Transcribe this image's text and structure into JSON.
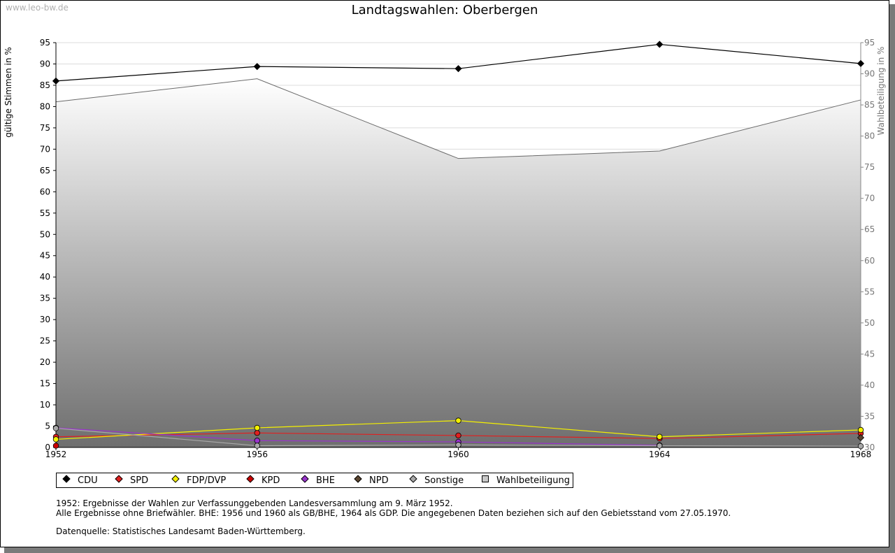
{
  "header": {
    "watermark": "www.leo-bw.de",
    "title": "Landtagswahlen: Oberbergen"
  },
  "chart_data": {
    "type": "line",
    "title": "Landtagswahlen: Oberbergen",
    "x": [
      "1952",
      "1956",
      "1960",
      "1964",
      "1968"
    ],
    "ylabel": "gültige Stimmen in %",
    "y2label": "Wahlbeteiligung in %",
    "ylim": [
      0,
      95
    ],
    "y2lim": [
      30,
      95
    ],
    "yticks": [
      0,
      5,
      10,
      15,
      20,
      25,
      30,
      35,
      40,
      45,
      50,
      55,
      60,
      65,
      70,
      75,
      80,
      85,
      90,
      95
    ],
    "y2ticks": [
      30,
      35,
      40,
      45,
      50,
      55,
      60,
      65,
      70,
      75,
      80,
      85,
      90,
      95
    ],
    "grid": true,
    "legend_position": "bottom",
    "series": [
      {
        "name": "CDU",
        "color": "#000000",
        "values": [
          86.0,
          89.4,
          88.9,
          94.6,
          90.1
        ]
      },
      {
        "name": "SPD",
        "color": "#e02020",
        "values": [
          2.5,
          3.4,
          2.8,
          2.1,
          3.3
        ]
      },
      {
        "name": "FDP/DVP",
        "color": "#f4f000",
        "values": [
          1.9,
          4.6,
          6.3,
          2.5,
          4.1
        ]
      },
      {
        "name": "KPD",
        "color": "#cc0000",
        "values": [
          0.4,
          null,
          null,
          null,
          null
        ]
      },
      {
        "name": "BHE",
        "color": "#9933cc",
        "values": [
          4.6,
          1.6,
          1.3,
          0.5,
          null
        ]
      },
      {
        "name": "NPD",
        "color": "#5a4530",
        "values": [
          null,
          null,
          null,
          null,
          2.3
        ]
      },
      {
        "name": "Sonstige",
        "color": "#a8a8a8",
        "values": [
          4.5,
          0.4,
          0.6,
          0.4,
          0.3
        ]
      }
    ],
    "turnout": {
      "name": "Wahlbeteiligung",
      "axis": "right",
      "values": [
        85.5,
        89.2,
        76.4,
        77.6,
        85.8
      ]
    }
  },
  "legend": [
    {
      "label": "CDU",
      "color": "#000000"
    },
    {
      "label": "SPD",
      "color": "#e02020"
    },
    {
      "label": "FDP/DVP",
      "color": "#f4f000"
    },
    {
      "label": "KPD",
      "color": "#cc0000"
    },
    {
      "label": "BHE",
      "color": "#9933cc"
    },
    {
      "label": "NPD",
      "color": "#5a4530"
    },
    {
      "label": "Sonstige",
      "color": "#a8a8a8"
    },
    {
      "label": "Wahlbeteiligung",
      "color": "#c8c8c8"
    }
  ],
  "notes": {
    "line1": "1952: Ergebnisse der Wahlen zur Verfassunggebenden Landesversammlung am 9. März 1952.",
    "line2": "Alle Ergebnisse ohne Briefwähler. BHE: 1956 und 1960 als GB/BHE, 1964 als GDP. Die angegebenen Daten beziehen sich auf den Gebietsstand vom 27.05.1970.",
    "source": "Datenquelle: Statistisches Landesamt Baden-Württemberg."
  }
}
